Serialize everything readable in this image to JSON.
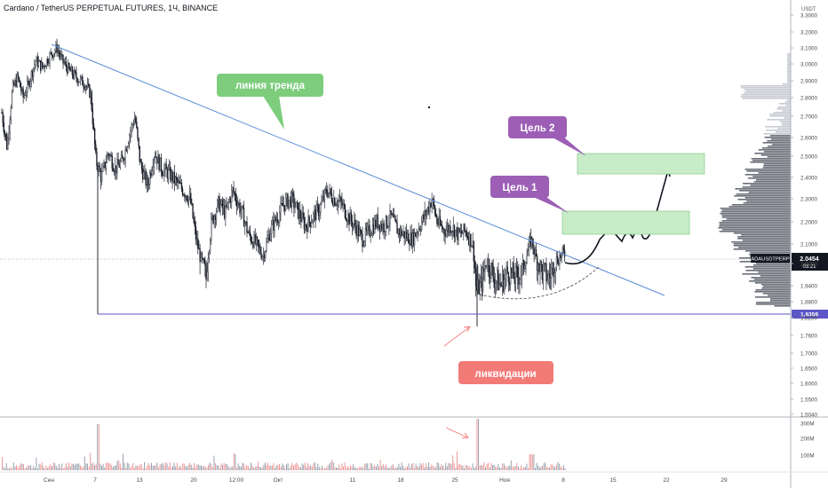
{
  "chart_data": {
    "type": "candlestick",
    "title": "Cardano / TetherUS PERPETUAL FUTURES, 1Ч, BINANCE",
    "unit": "USDT",
    "symbol": "ADAUSDTPERP",
    "last_price": "2.0454",
    "countdown": "03:21",
    "level_line": "1.8359",
    "y_ticks": [
      "3.3000",
      "3.2000",
      "3.1000",
      "3.0000",
      "2.9000",
      "2.8000",
      "2.7000",
      "2.6000",
      "2.5000",
      "2.4000",
      "2.3000",
      "2.2000",
      "2.1000",
      "2.0000",
      "1.9400",
      "1.8800",
      "1.8200",
      "1.7600",
      "1.7000",
      "1.6500",
      "1.6000",
      "1.5500",
      "1.5040"
    ],
    "y_values": [
      3.3,
      3.2,
      3.1,
      3.0,
      2.9,
      2.8,
      2.7,
      2.6,
      2.5,
      2.4,
      2.3,
      2.2,
      2.1,
      2.0,
      1.94,
      1.88,
      1.82,
      1.76,
      1.7,
      1.65,
      1.6,
      1.55,
      1.504
    ],
    "x_ticks": [
      "Сен",
      "7",
      "13",
      "20",
      "12:00",
      "Окт",
      "11",
      "18",
      "25",
      "Ноя",
      "8",
      "15",
      "22",
      "29"
    ],
    "volume_ticks": [
      "300M",
      "200M",
      "100M"
    ],
    "volume_values": [
      300,
      200,
      100
    ],
    "annotations": {
      "trend": "линия тренда",
      "target1": "Цель 1",
      "target2": "Цель 2",
      "liquidations": "ликвидации"
    },
    "colors": {
      "up": "#26a69a",
      "down": "#131722",
      "trend_line": "#5b8dd9",
      "level": "#5c56c6",
      "green_label": "#7dcd7d",
      "purple_label": "#9c5fb5",
      "red_label": "#f27a77",
      "target_box": "#c8ecc8"
    }
  }
}
